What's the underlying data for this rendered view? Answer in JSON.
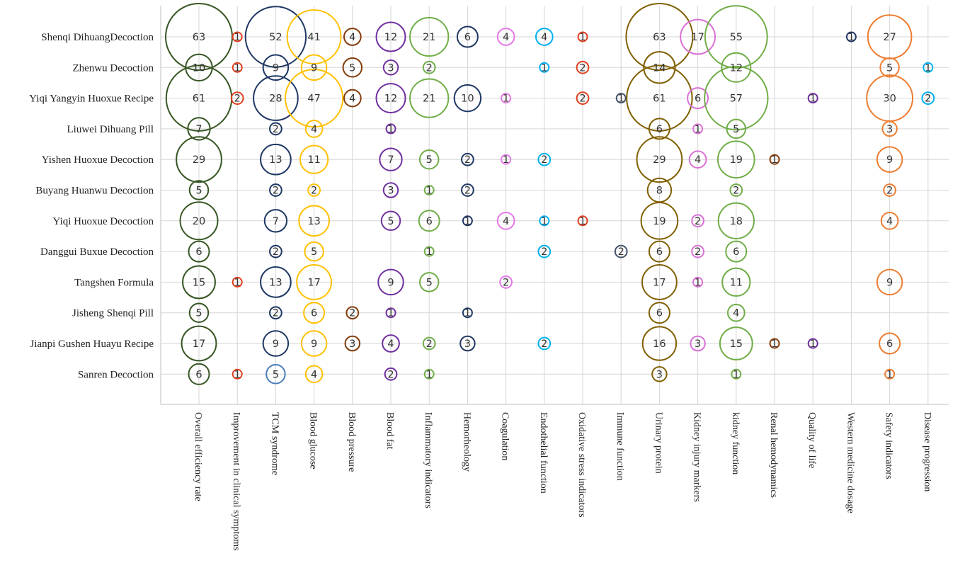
{
  "chart_data": {
    "type": "bubble",
    "rows": [
      "Shenqi DihuangDecoction",
      "Zhenwu Decoction",
      "Yiqi Yangyin Huoxue Recipe",
      "Liuwei Dihuang Pill",
      "Yishen Huoxue Decoction",
      "Buyang Huanwu Decoction",
      "Yiqi Huoxue Decoction",
      "Danggui Buxue Decoction",
      "Tangshen Formula",
      "Jisheng Shenqi Pill",
      "Jianpi Gushen Huayu Recipe",
      "Sanren Decoction"
    ],
    "columns": [
      "Overall efficiency rate",
      "Improvement in clinical symptoms",
      "TCM syndrome",
      "Blood glucose",
      "Blood pressure",
      "Blood fat",
      "Inflammatory indicators",
      "Hemorheology",
      "Coagulation",
      "Endothelial function",
      "Oxidative stress indicators",
      "Immune function",
      "Urinary protein",
      "Kidney injury markers",
      "kidney function",
      "Renal hemodynamics",
      "Quality of life",
      "Western medicine dosage",
      "Safety indicators",
      "Disease progression"
    ],
    "column_colors": [
      "#375623",
      "#e0401f",
      "#1f3864",
      "#ffc000",
      "#843c0c",
      "#7030a0",
      "#70ad47",
      "#203864",
      "#e479e8",
      "#00b0f0",
      "#e0401f",
      "#44546a",
      "#806000",
      "#da70d6",
      "#70ad47",
      "#843c0c",
      "#7030a0",
      "#203864",
      "#ed7d31",
      "#00b0f0"
    ],
    "column_color_overrides": [
      {
        "row": 11,
        "col": 2,
        "color": "#4a7ebb"
      }
    ],
    "values": [
      [
        63,
        1,
        52,
        41,
        4,
        12,
        21,
        6,
        4,
        4,
        1,
        null,
        63,
        17,
        55,
        null,
        null,
        1,
        27,
        null
      ],
      [
        10,
        1,
        9,
        9,
        5,
        3,
        2,
        null,
        null,
        1,
        2,
        null,
        14,
        null,
        12,
        null,
        null,
        null,
        5,
        1
      ],
      [
        61,
        2,
        28,
        47,
        4,
        12,
        21,
        10,
        1,
        null,
        2,
        1,
        61,
        6,
        57,
        null,
        1,
        null,
        30,
        2
      ],
      [
        7,
        null,
        2,
        4,
        null,
        1,
        null,
        null,
        null,
        null,
        null,
        null,
        6,
        1,
        5,
        null,
        null,
        null,
        3,
        null
      ],
      [
        29,
        null,
        13,
        11,
        null,
        7,
        5,
        2,
        1,
        2,
        null,
        null,
        29,
        4,
        19,
        1,
        null,
        null,
        9,
        null
      ],
      [
        5,
        null,
        2,
        2,
        null,
        3,
        1,
        2,
        null,
        null,
        null,
        null,
        8,
        null,
        2,
        null,
        null,
        null,
        2,
        null
      ],
      [
        20,
        null,
        7,
        13,
        null,
        5,
        6,
        1,
        4,
        1,
        1,
        null,
        19,
        2,
        18,
        null,
        null,
        null,
        4,
        null
      ],
      [
        6,
        null,
        2,
        5,
        null,
        null,
        1,
        null,
        null,
        2,
        null,
        2,
        6,
        2,
        6,
        null,
        null,
        null,
        null,
        null
      ],
      [
        15,
        1,
        13,
        17,
        null,
        9,
        5,
        null,
        2,
        null,
        null,
        null,
        17,
        1,
        11,
        null,
        null,
        null,
        9,
        null
      ],
      [
        5,
        null,
        2,
        6,
        2,
        1,
        null,
        1,
        null,
        null,
        null,
        null,
        6,
        null,
        4,
        null,
        null,
        null,
        null,
        null
      ],
      [
        17,
        null,
        9,
        9,
        3,
        4,
        2,
        3,
        null,
        2,
        null,
        null,
        16,
        3,
        15,
        1,
        1,
        null,
        6,
        null
      ],
      [
        6,
        1,
        5,
        4,
        null,
        2,
        1,
        null,
        null,
        null,
        null,
        null,
        3,
        null,
        1,
        null,
        null,
        null,
        1,
        null
      ]
    ],
    "xlabel": "",
    "ylabel": "",
    "grid": true,
    "legend": "none"
  }
}
